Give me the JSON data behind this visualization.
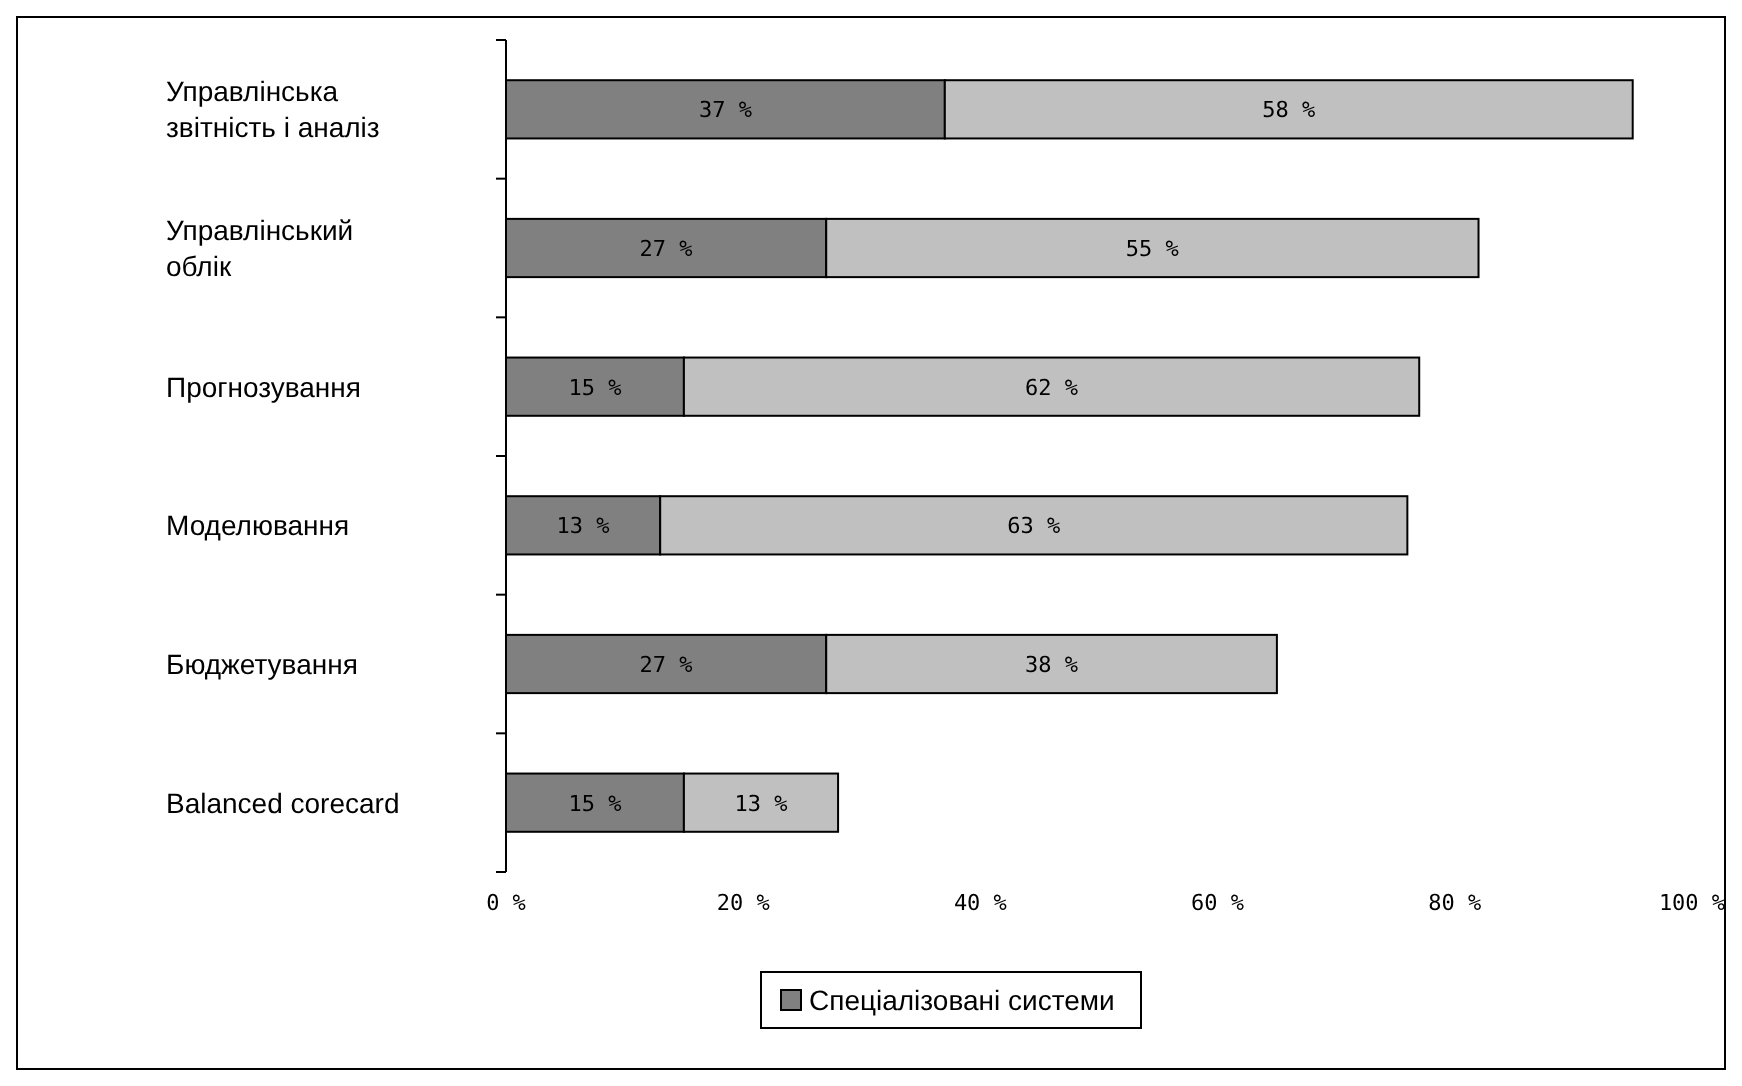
{
  "chart_data": {
    "type": "bar",
    "orientation": "horizontal",
    "stacked": true,
    "categories": [
      "Управлінська звітність і аналіз",
      "Управлінський облік",
      "Прогнозування",
      "Моделювання",
      "Бюджетування",
      "Balanced corecard"
    ],
    "series": [
      {
        "name": "Спеціалізовані системи",
        "color": "#808080",
        "values": [
          37,
          27,
          15,
          13,
          27,
          15
        ],
        "value_labels": [
          "37 %",
          "27 %",
          "15 %",
          "13 %",
          "27 %",
          "15 %"
        ]
      },
      {
        "color": "#c0c0c0",
        "values": [
          58,
          55,
          62,
          63,
          38,
          13
        ],
        "value_labels": [
          "58 %",
          "55 %",
          "62 %",
          "63 %",
          "38 %",
          "13 %"
        ]
      }
    ],
    "xlim": [
      0,
      100
    ],
    "xticks": [
      {
        "value": 0,
        "label": "0 %"
      },
      {
        "value": 20,
        "label": "20 %"
      },
      {
        "value": 40,
        "label": "40 %"
      },
      {
        "value": 60,
        "label": "60 %"
      },
      {
        "value": 80,
        "label": "80 %"
      },
      {
        "value": 100,
        "label": "100 %"
      }
    ],
    "grid": false,
    "legend": "bottom"
  }
}
